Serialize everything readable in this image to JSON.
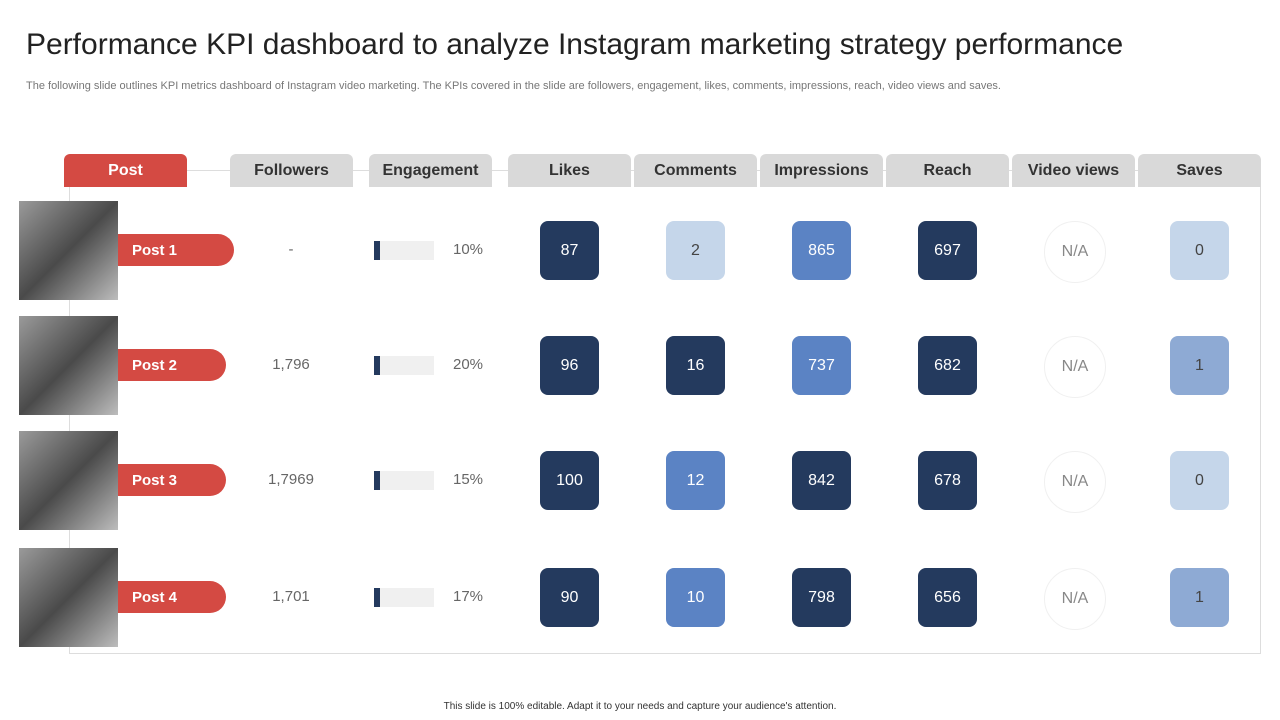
{
  "title": "Performance KPI dashboard to analyze Instagram marketing strategy performance",
  "subtitle": "The following slide outlines KPI metrics dashboard of Instagram video marketing. The KPIs covered in the slide are followers, engagement, likes, comments, impressions, reach, video views and saves.",
  "table": {
    "headers": [
      "Post",
      "Followers",
      "Engagement",
      "Likes",
      "Comments",
      "Impressions",
      "Reach",
      "Video views",
      "Saves"
    ],
    "rows": [
      {
        "post": "Post 1",
        "followers": "-",
        "engagement": "10%",
        "cells": [
          {
            "value": "87",
            "color": "#243a5e"
          },
          {
            "value": "2",
            "color": "#c5d6ea"
          },
          {
            "value": "865",
            "color": "#5b83c4"
          },
          {
            "value": "697",
            "color": "#243a5e"
          },
          {
            "value": "N/A",
            "color": "#ffffff"
          },
          {
            "value": "0",
            "color": "#c5d6ea"
          }
        ]
      },
      {
        "post": "Post 2",
        "followers": "1,796",
        "engagement": "20%",
        "cells": [
          {
            "value": "96",
            "color": "#243a5e"
          },
          {
            "value": "16",
            "color": "#243a5e"
          },
          {
            "value": "737",
            "color": "#5b83c4"
          },
          {
            "value": "682",
            "color": "#243a5e"
          },
          {
            "value": "N/A",
            "color": "#ffffff"
          },
          {
            "value": "1",
            "color": "#8eaad4"
          }
        ]
      },
      {
        "post": "Post 3",
        "followers": "1,7969",
        "engagement": "15%",
        "cells": [
          {
            "value": "100",
            "color": "#243a5e"
          },
          {
            "value": "12",
            "color": "#5b83c4"
          },
          {
            "value": "842",
            "color": "#243a5e"
          },
          {
            "value": "678",
            "color": "#243a5e"
          },
          {
            "value": "N/A",
            "color": "#ffffff"
          },
          {
            "value": "0",
            "color": "#c5d6ea"
          }
        ]
      },
      {
        "post": "Post 4",
        "followers": "1,701",
        "engagement": "17%",
        "cells": [
          {
            "value": "90",
            "color": "#243a5e"
          },
          {
            "value": "10",
            "color": "#5b83c4"
          },
          {
            "value": "798",
            "color": "#243a5e"
          },
          {
            "value": "656",
            "color": "#243a5e"
          },
          {
            "value": "N/A",
            "color": "#ffffff"
          },
          {
            "value": "1",
            "color": "#8eaad4"
          }
        ]
      }
    ]
  },
  "footer": "This slide is 100% editable. Adapt it to your needs and capture your audience's attention."
}
